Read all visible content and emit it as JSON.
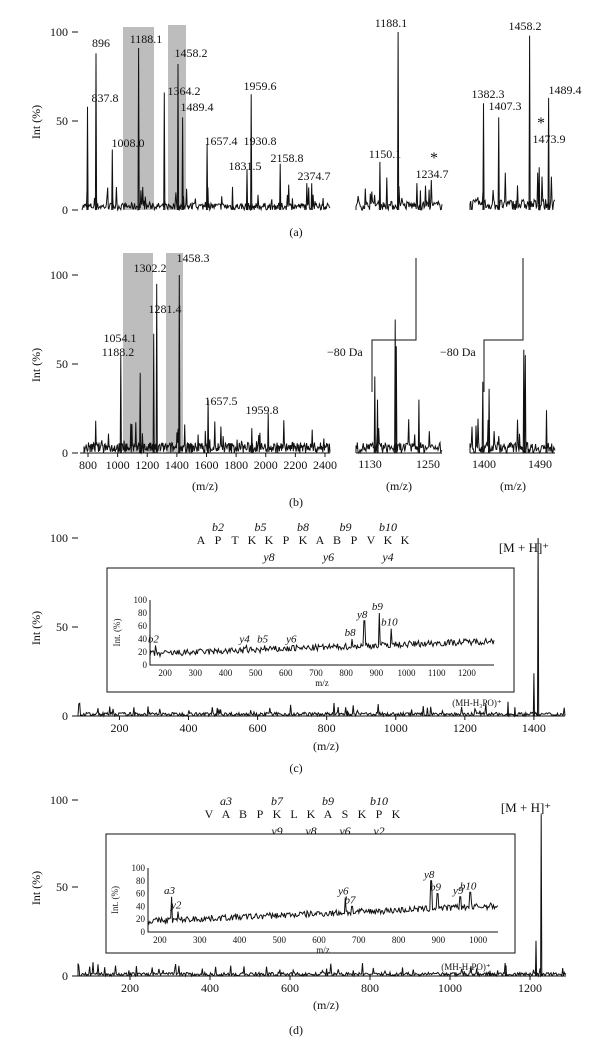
{
  "chart_data": [
    {
      "panel": "(a)",
      "type": "line",
      "ylabel": "Int (%)",
      "ylim": [
        0,
        100
      ],
      "yticks": [
        "0",
        "50",
        "100"
      ],
      "xlim": [
        800,
        2500
      ],
      "shaded_mz": [
        [
          1090,
          1275
        ],
        [
          1400,
          1495
        ]
      ],
      "peaks": [
        {
          "mz": 837.8,
          "int": 58,
          "label": "837.8"
        },
        {
          "mz": 896,
          "int": 88,
          "label": "896"
        },
        {
          "mz": 1008.0,
          "int": 34,
          "label": "1008.0"
        },
        {
          "mz": 1188.1,
          "int": 91,
          "label": "1188.1"
        },
        {
          "mz": 1364.2,
          "int": 66,
          "label": "1364.2"
        },
        {
          "mz": 1458.2,
          "int": 82,
          "label": "1458.2"
        },
        {
          "mz": 1489.4,
          "int": 52,
          "label": "1489.4"
        },
        {
          "mz": 1657.4,
          "int": 37,
          "label": "1657.4"
        },
        {
          "mz": 1930.8,
          "int": 23,
          "label": "1930.8"
        },
        {
          "mz": 1959.6,
          "int": 65,
          "label": "1959.6"
        },
        {
          "mz": 1831.5,
          "int": 13,
          "label": "1831.5"
        },
        {
          "mz": 2158.8,
          "int": 26,
          "label": "2158.8"
        },
        {
          "mz": 2374.7,
          "int": 15,
          "label": "2374.7"
        }
      ],
      "insets": [
        {
          "xlim": [
            1100,
            1280
          ],
          "peaks": [
            {
              "mz": 1188.1,
              "int": 100,
              "label": "1188.1"
            },
            {
              "mz": 1150.1,
              "int": 27,
              "label": "1150.1"
            },
            {
              "mz": 1234.7,
              "int": 11,
              "label": "1234.7"
            }
          ],
          "star_label": "*"
        },
        {
          "xlim": [
            1360,
            1500
          ],
          "peaks": [
            {
              "mz": 1382.3,
              "int": 60,
              "label": "1382.3"
            },
            {
              "mz": 1407.3,
              "int": 52,
              "label": "1407.3"
            },
            {
              "mz": 1458.2,
              "int": 98,
              "label": "1458.2"
            },
            {
              "mz": 1473.9,
              "int": 24,
              "label": "1473.9"
            },
            {
              "mz": 1489.4,
              "int": 63,
              "label": "1489.4"
            }
          ],
          "star_label": "*"
        }
      ]
    },
    {
      "panel": "(b)",
      "type": "line",
      "ylabel": "Int (%)",
      "xlabel": "(m/z)",
      "ylim": [
        0,
        100
      ],
      "yticks": [
        "0",
        "50",
        "100"
      ],
      "xlim": [
        800,
        2500
      ],
      "xticks": [
        "800",
        "1000",
        "1200",
        "1400",
        "1600",
        "1800",
        "2000",
        "2200",
        "2400"
      ],
      "shaded_mz": [
        [
          1090,
          1275
        ],
        [
          1390,
          1490
        ]
      ],
      "peaks": [
        {
          "mz": 1054.1,
          "int": 55,
          "label": "1054.1"
        },
        {
          "mz": 1188.2,
          "int": 45,
          "label": "1188.2"
        },
        {
          "mz": 1281.4,
          "int": 67,
          "label": "1281.4"
        },
        {
          "mz": 1302.2,
          "int": 95,
          "label": "1302.2"
        },
        {
          "mz": 1458.3,
          "int": 100,
          "label": "1458.3"
        },
        {
          "mz": 1657.5,
          "int": 30,
          "label": "1657.5"
        },
        {
          "mz": 1959.8,
          "int": 14,
          "label": "1959.8"
        }
      ],
      "insets": [
        {
          "xlim": [
            1115,
            1275
          ],
          "xticks": [
            "1130",
            "1250"
          ],
          "xlabel": "(m/z)",
          "annotation": "−80 Da"
        },
        {
          "xlim": [
            1380,
            1500
          ],
          "xticks": [
            "1400",
            "1490"
          ],
          "xlabel": "(m/z)",
          "annotation": "−80 Da"
        }
      ]
    },
    {
      "panel": "(c)",
      "type": "line",
      "ylabel": "Int (%)",
      "xlabel": "(m/z)",
      "ylim": [
        0,
        100
      ],
      "yticks": [
        "0",
        "50",
        "100"
      ],
      "xlim": [
        80,
        1490
      ],
      "xticks": [
        "200",
        "400",
        "600",
        "800",
        "1000",
        "1200",
        "1400"
      ],
      "precursor_label": "[M + H]⁺",
      "loss_label": "(MH-H₃PO)⁺",
      "sequence": [
        "A",
        "P",
        "T",
        "K",
        "K",
        "P",
        "K",
        "A",
        "B",
        "P",
        "V",
        "K",
        "K"
      ],
      "b_ions": [
        "b2",
        "b5",
        "b8",
        "b9",
        "b10"
      ],
      "y_ions": [
        "y8",
        "y6",
        "y4"
      ],
      "inset": {
        "ylabel": "Int. (%)",
        "xlabel": "m/z",
        "yticks": [
          "0",
          "20",
          "40",
          "60",
          "80",
          "100"
        ],
        "xticks": [
          "200",
          "300",
          "400",
          "500",
          "600",
          "700",
          "800",
          "900",
          "1000",
          "1100",
          "1200"
        ],
        "xlim": [
          150,
          1290
        ],
        "peaks": [
          {
            "mz": 168,
            "int": 30,
            "label": "b2"
          },
          {
            "mz": 470,
            "int": 30,
            "label": "y4"
          },
          {
            "mz": 530,
            "int": 30,
            "label": "b5"
          },
          {
            "mz": 625,
            "int": 30,
            "label": "y6"
          },
          {
            "mz": 820,
            "int": 40,
            "label": "b8"
          },
          {
            "mz": 860,
            "int": 68,
            "label": "y8"
          },
          {
            "mz": 910,
            "int": 80,
            "label": "b9"
          },
          {
            "mz": 950,
            "int": 56,
            "label": "b10"
          }
        ]
      }
    },
    {
      "panel": "(d)",
      "type": "line",
      "ylabel": "Int (%)",
      "xlabel": "(m/z)",
      "ylim": [
        0,
        100
      ],
      "yticks": [
        "0",
        "50",
        "100"
      ],
      "xlim": [
        70,
        1290
      ],
      "xticks": [
        "200",
        "400",
        "600",
        "800",
        "1000",
        "1200"
      ],
      "precursor_label": "[M + H]⁺",
      "loss_label": "(MH-H₃PO)⁺",
      "sequence": [
        "V",
        "A",
        "B",
        "P",
        "K",
        "L",
        "K",
        "A",
        "S",
        "K",
        "P",
        "K"
      ],
      "b_ions": [
        "a3",
        "b7",
        "b9",
        "b10"
      ],
      "y_ions": [
        "y9",
        "y8",
        "y6",
        "y2"
      ],
      "inset": {
        "ylabel": "Int. (%)",
        "xlabel": "m/z",
        "yticks": [
          "0",
          "20",
          "40",
          "60",
          "80",
          "100"
        ],
        "xticks": [
          "200",
          "300",
          "400",
          "500",
          "600",
          "700",
          "800",
          "900",
          "1000"
        ],
        "xlim": [
          170,
          1050
        ],
        "peaks": [
          {
            "mz": 229,
            "int": 55,
            "label": "a3"
          },
          {
            "mz": 246,
            "int": 32,
            "label": "y2"
          },
          {
            "mz": 666,
            "int": 54,
            "label": "y6"
          },
          {
            "mz": 683,
            "int": 40,
            "label": "b7"
          },
          {
            "mz": 882,
            "int": 80,
            "label": "y8"
          },
          {
            "mz": 898,
            "int": 60,
            "label": "b9"
          },
          {
            "mz": 955,
            "int": 55,
            "label": "y9"
          },
          {
            "mz": 980,
            "int": 62,
            "label": "b10"
          }
        ]
      }
    }
  ]
}
